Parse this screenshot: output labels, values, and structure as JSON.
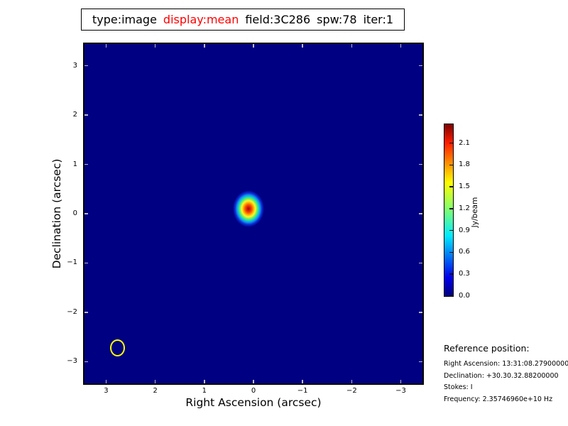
{
  "title": {
    "segments": [
      {
        "text": "type:image",
        "color": "#000000"
      },
      {
        "text": "display:mean",
        "color": "#ff0000"
      },
      {
        "text": "field:3C286",
        "color": "#000000"
      },
      {
        "text": "spw:78",
        "color": "#000000"
      },
      {
        "text": "iter:1",
        "color": "#000000"
      }
    ]
  },
  "chart_data": {
    "type": "heatmap",
    "title": "type:image display:mean field:3C286 spw:78 iter:1",
    "xlabel": "Right Ascension (arcsec)",
    "ylabel": "Declination (arcsec)",
    "xlim": [
      3.44,
      -3.44
    ],
    "ylim": [
      -3.44,
      3.44
    ],
    "x_ticks": [
      3,
      2,
      1,
      0,
      -1,
      -2,
      -3
    ],
    "x_tick_labels": [
      "3",
      "2",
      "1",
      "0",
      "−1",
      "−2",
      "−3"
    ],
    "y_ticks": [
      3,
      2,
      1,
      0,
      -1,
      -2,
      -3
    ],
    "y_tick_labels": [
      "3",
      "2",
      "1",
      "0",
      "−1",
      "−2",
      "−3"
    ],
    "colormap": "jet",
    "background_value_jy_per_beam": 0.0,
    "colorbar": {
      "label": "Jy/beam",
      "vmin": 0.0,
      "vmax": 2.36,
      "ticks": [
        0.0,
        0.3,
        0.6,
        0.9,
        1.2,
        1.5,
        1.8,
        2.1
      ],
      "tick_labels": [
        "0.0",
        "0.3",
        "0.6",
        "0.9",
        "1.2",
        "1.5",
        "1.8",
        "2.1"
      ]
    },
    "source": {
      "shape": "gaussian-point-source",
      "x_arcsec": 0.1,
      "y_arcsec": 0.1,
      "peak_jy_per_beam": 2.36
    },
    "beam_marker": {
      "shape": "open-circle",
      "x_arcsec": 2.77,
      "y_arcsec": -2.72,
      "color": "#ffff00"
    }
  },
  "reference": {
    "heading": "Reference position:",
    "lines": [
      "Right Ascension: 13:31:08.27900000",
      "Declination: +30.30.32.88200000",
      "Stokes: I",
      "Frequency: 2.35746960e+10 Hz"
    ]
  },
  "colors": {
    "plot_background": "#000082",
    "title_highlight": "#ff0000",
    "beam_marker": "#ffff00",
    "inner_tick": "#b9b9cb",
    "outer_text": "#000000"
  }
}
